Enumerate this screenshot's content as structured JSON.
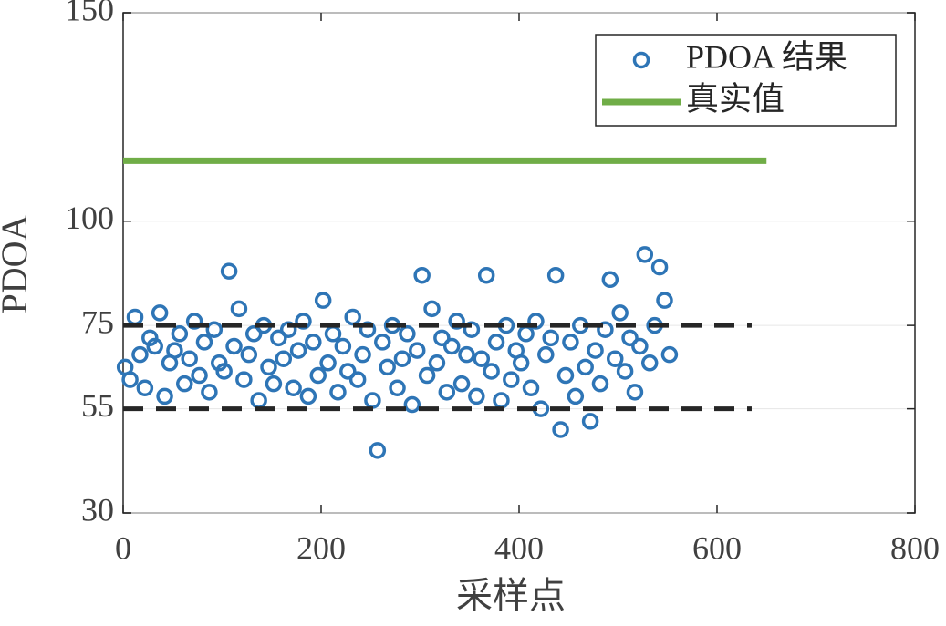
{
  "chart_data": {
    "type": "scatter",
    "x_label": "采样点",
    "y_label": "PDOA",
    "xlim": [
      0,
      800
    ],
    "xticks": [
      0,
      200,
      400,
      600,
      800
    ],
    "ylim": [
      30,
      150
    ],
    "yticks": [
      30,
      55,
      75,
      100,
      150
    ],
    "grid": "y",
    "legend_position": "upper right",
    "series": [
      {
        "name": "PDOA 结果",
        "type": "scatter",
        "color": "#2e75b6",
        "x": [
          2,
          7,
          12,
          17,
          22,
          27,
          32,
          37,
          42,
          47,
          52,
          57,
          62,
          67,
          72,
          77,
          82,
          87,
          92,
          97,
          102,
          107,
          112,
          117,
          122,
          127,
          132,
          137,
          142,
          147,
          152,
          157,
          162,
          167,
          172,
          177,
          182,
          187,
          192,
          197,
          202,
          207,
          212,
          217,
          222,
          227,
          232,
          237,
          242,
          247,
          252,
          257,
          262,
          267,
          272,
          277,
          282,
          287,
          292,
          297,
          302,
          307,
          312,
          317,
          322,
          327,
          332,
          337,
          342,
          347,
          352,
          357,
          362,
          367,
          372,
          377,
          382,
          387,
          392,
          397,
          402,
          407,
          412,
          417,
          422,
          427,
          432,
          437,
          442,
          447,
          452,
          457,
          462,
          467,
          472,
          477,
          482,
          487,
          492,
          497,
          502,
          507,
          512,
          517,
          522,
          527,
          532,
          537,
          542,
          547,
          552
        ],
        "values": [
          65,
          62,
          77,
          68,
          60,
          72,
          70,
          78,
          58,
          66,
          69,
          73,
          61,
          67,
          76,
          63,
          71,
          59,
          74,
          66,
          64,
          88,
          70,
          79,
          62,
          68,
          73,
          57,
          75,
          65,
          61,
          72,
          67,
          74,
          60,
          69,
          76,
          58,
          71,
          63,
          81,
          66,
          73,
          59,
          70,
          64,
          77,
          62,
          68,
          74,
          57,
          45,
          71,
          65,
          75,
          60,
          67,
          73,
          56,
          69,
          87,
          63,
          79,
          66,
          72,
          59,
          70,
          76,
          61,
          68,
          74,
          58,
          67,
          87,
          64,
          71,
          57,
          75,
          62,
          69,
          66,
          73,
          60,
          76,
          55,
          68,
          72,
          87,
          50,
          63,
          71,
          58,
          75,
          65,
          52,
          69,
          61,
          74,
          86,
          67,
          78,
          64,
          72,
          59,
          70,
          92,
          66,
          75,
          89,
          81,
          68
        ]
      },
      {
        "name": "真实值",
        "type": "line",
        "color": "#70ad47",
        "x": [
          0,
          650
        ],
        "values": [
          114.5,
          114.5
        ]
      }
    ],
    "dashed_lines": [
      {
        "color": "#262626",
        "x": [
          0,
          635
        ],
        "values": [
          75,
          75
        ]
      },
      {
        "color": "#262626",
        "x": [
          0,
          635
        ],
        "values": [
          55,
          55
        ]
      }
    ]
  }
}
